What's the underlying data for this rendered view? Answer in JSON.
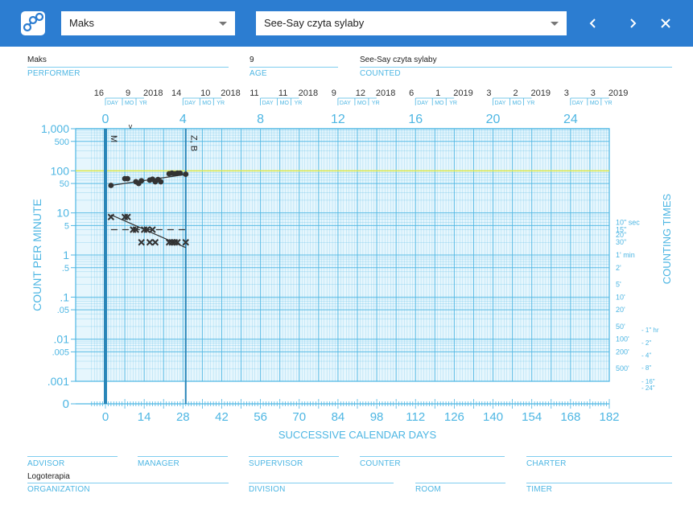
{
  "header": {
    "performer_select": "Maks",
    "counted_select": "See-Say czyta sylaby",
    "prev_icon": "chevron-left-icon",
    "next_icon": "chevron-right-icon",
    "close_icon": "close-icon",
    "brand_color": "#2c7dd1"
  },
  "info": {
    "performer": "Maks",
    "performer_label": "PERFORMER",
    "age": "9",
    "age_label": "AGE",
    "counted": "See-Say czyta sylaby",
    "counted_label": "COUNTED"
  },
  "footer": {
    "advisor_label": "ADVISOR",
    "manager_label": "MANAGER",
    "supervisor_label": "SUPERVISOR",
    "counter_label": "COUNTER",
    "charter_label": "CHARTER",
    "organization": "Logoterapia",
    "organization_label": "ORGANIZATION",
    "division_label": "DIVISION",
    "room_label": "ROOM",
    "timer_label": "TIMER"
  },
  "chart_data": {
    "type": "scatter",
    "chart_kind": "standard celeration chart",
    "xlabel": "SUCCESSIVE CALENDAR DAYS",
    "ylabel": "COUNT PER MINUTE",
    "right_label": "COUNTING TIMES",
    "y_scale": "log",
    "ylim": [
      0.001,
      1000
    ],
    "xlim": [
      0,
      182
    ],
    "y_ticks": [
      {
        "v": 1000,
        "t": "1,000"
      },
      {
        "v": 500,
        "t": "500"
      },
      {
        "v": 100,
        "t": "100"
      },
      {
        "v": 50,
        "t": "50"
      },
      {
        "v": 10,
        "t": "10"
      },
      {
        "v": 5,
        "t": "5"
      },
      {
        "v": 1,
        "t": "1"
      },
      {
        "v": 0.5,
        "t": ".5"
      },
      {
        "v": 0.1,
        "t": ".1"
      },
      {
        "v": 0.05,
        "t": ".05"
      },
      {
        "v": 0.01,
        "t": ".01"
      },
      {
        "v": 0.005,
        "t": ".005"
      },
      {
        "v": 0.001,
        "t": ".001"
      }
    ],
    "y_zero_label": "0",
    "x_ticks": [
      "0",
      "14",
      "28",
      "42",
      "56",
      "70",
      "84",
      "98",
      "112",
      "126",
      "140",
      "154",
      "168",
      "182"
    ],
    "week_ticks": [
      "0",
      "4",
      "8",
      "12",
      "16",
      "20",
      "24"
    ],
    "dates": [
      {
        "day": "16",
        "mo": "9",
        "yr": "2018"
      },
      {
        "day": "14",
        "mo": "10",
        "yr": "2018"
      },
      {
        "day": "11",
        "mo": "11",
        "yr": "2018"
      },
      {
        "day": "9",
        "mo": "12",
        "yr": "2018"
      },
      {
        "day": "6",
        "mo": "1",
        "yr": "2019"
      },
      {
        "day": "3",
        "mo": "2",
        "yr": "2019"
      },
      {
        "day": "3",
        "mo": "3",
        "yr": "2019"
      }
    ],
    "date_sublabels": [
      "DAY",
      "MO",
      "YR"
    ],
    "counting_times": [
      {
        "v": 6,
        "t": "10\" sec"
      },
      {
        "v": 4,
        "t": "15\""
      },
      {
        "v": 3,
        "t": "20\""
      },
      {
        "v": 2,
        "t": "30\""
      },
      {
        "v": 1,
        "t": "1' min"
      },
      {
        "v": 0.5,
        "t": "2'"
      },
      {
        "v": 0.2,
        "t": "5'"
      },
      {
        "v": 0.1,
        "t": "10'"
      },
      {
        "v": 0.05,
        "t": "20'"
      },
      {
        "v": 0.02,
        "t": "50'"
      },
      {
        "v": 0.01,
        "t": "100'"
      },
      {
        "v": 0.005,
        "t": "200'"
      },
      {
        "v": 0.002,
        "t": "500'"
      }
    ],
    "counting_hours": [
      {
        "v": 0.0167,
        "t": "1\" hr"
      },
      {
        "v": 0.0083,
        "t": "2\""
      },
      {
        "v": 0.0042,
        "t": "4\""
      },
      {
        "v": 0.0021,
        "t": "8\""
      },
      {
        "v": 0.001,
        "t": "16\""
      },
      {
        "v": 0.0007,
        "t": "24\""
      }
    ],
    "phase_lines": [
      {
        "day": 0,
        "label": "M"
      },
      {
        "day": 29,
        "label": "Z, B"
      }
    ],
    "aim_line": 100,
    "week_marker_day": 9,
    "series": [
      {
        "marker": "dot",
        "x": [
          2,
          7,
          8,
          11,
          12,
          13,
          16,
          17,
          18,
          19,
          20,
          23,
          24,
          25,
          26,
          27,
          29
        ],
        "y": [
          45,
          65,
          65,
          55,
          50,
          58,
          60,
          63,
          55,
          62,
          55,
          85,
          88,
          85,
          88,
          88,
          83
        ],
        "trend": [
          [
            2,
            45
          ],
          [
            29,
            82
          ]
        ]
      },
      {
        "marker": "x",
        "x": [
          2,
          7,
          8,
          10,
          11,
          13,
          14,
          15,
          16,
          17,
          18,
          23,
          24,
          25,
          26,
          29
        ],
        "y": [
          8,
          8,
          8,
          4,
          4,
          2,
          4,
          4,
          2,
          4,
          2,
          2,
          2,
          2,
          2,
          2
        ],
        "trend": [
          [
            2,
            9
          ],
          [
            29,
            1.5
          ]
        ]
      }
    ],
    "record_floor": {
      "y": 4,
      "x": [
        2,
        29
      ]
    },
    "grid": true,
    "line_color": "#4db6e3",
    "aim_color": "#dde94a",
    "data_color": "#333333"
  }
}
